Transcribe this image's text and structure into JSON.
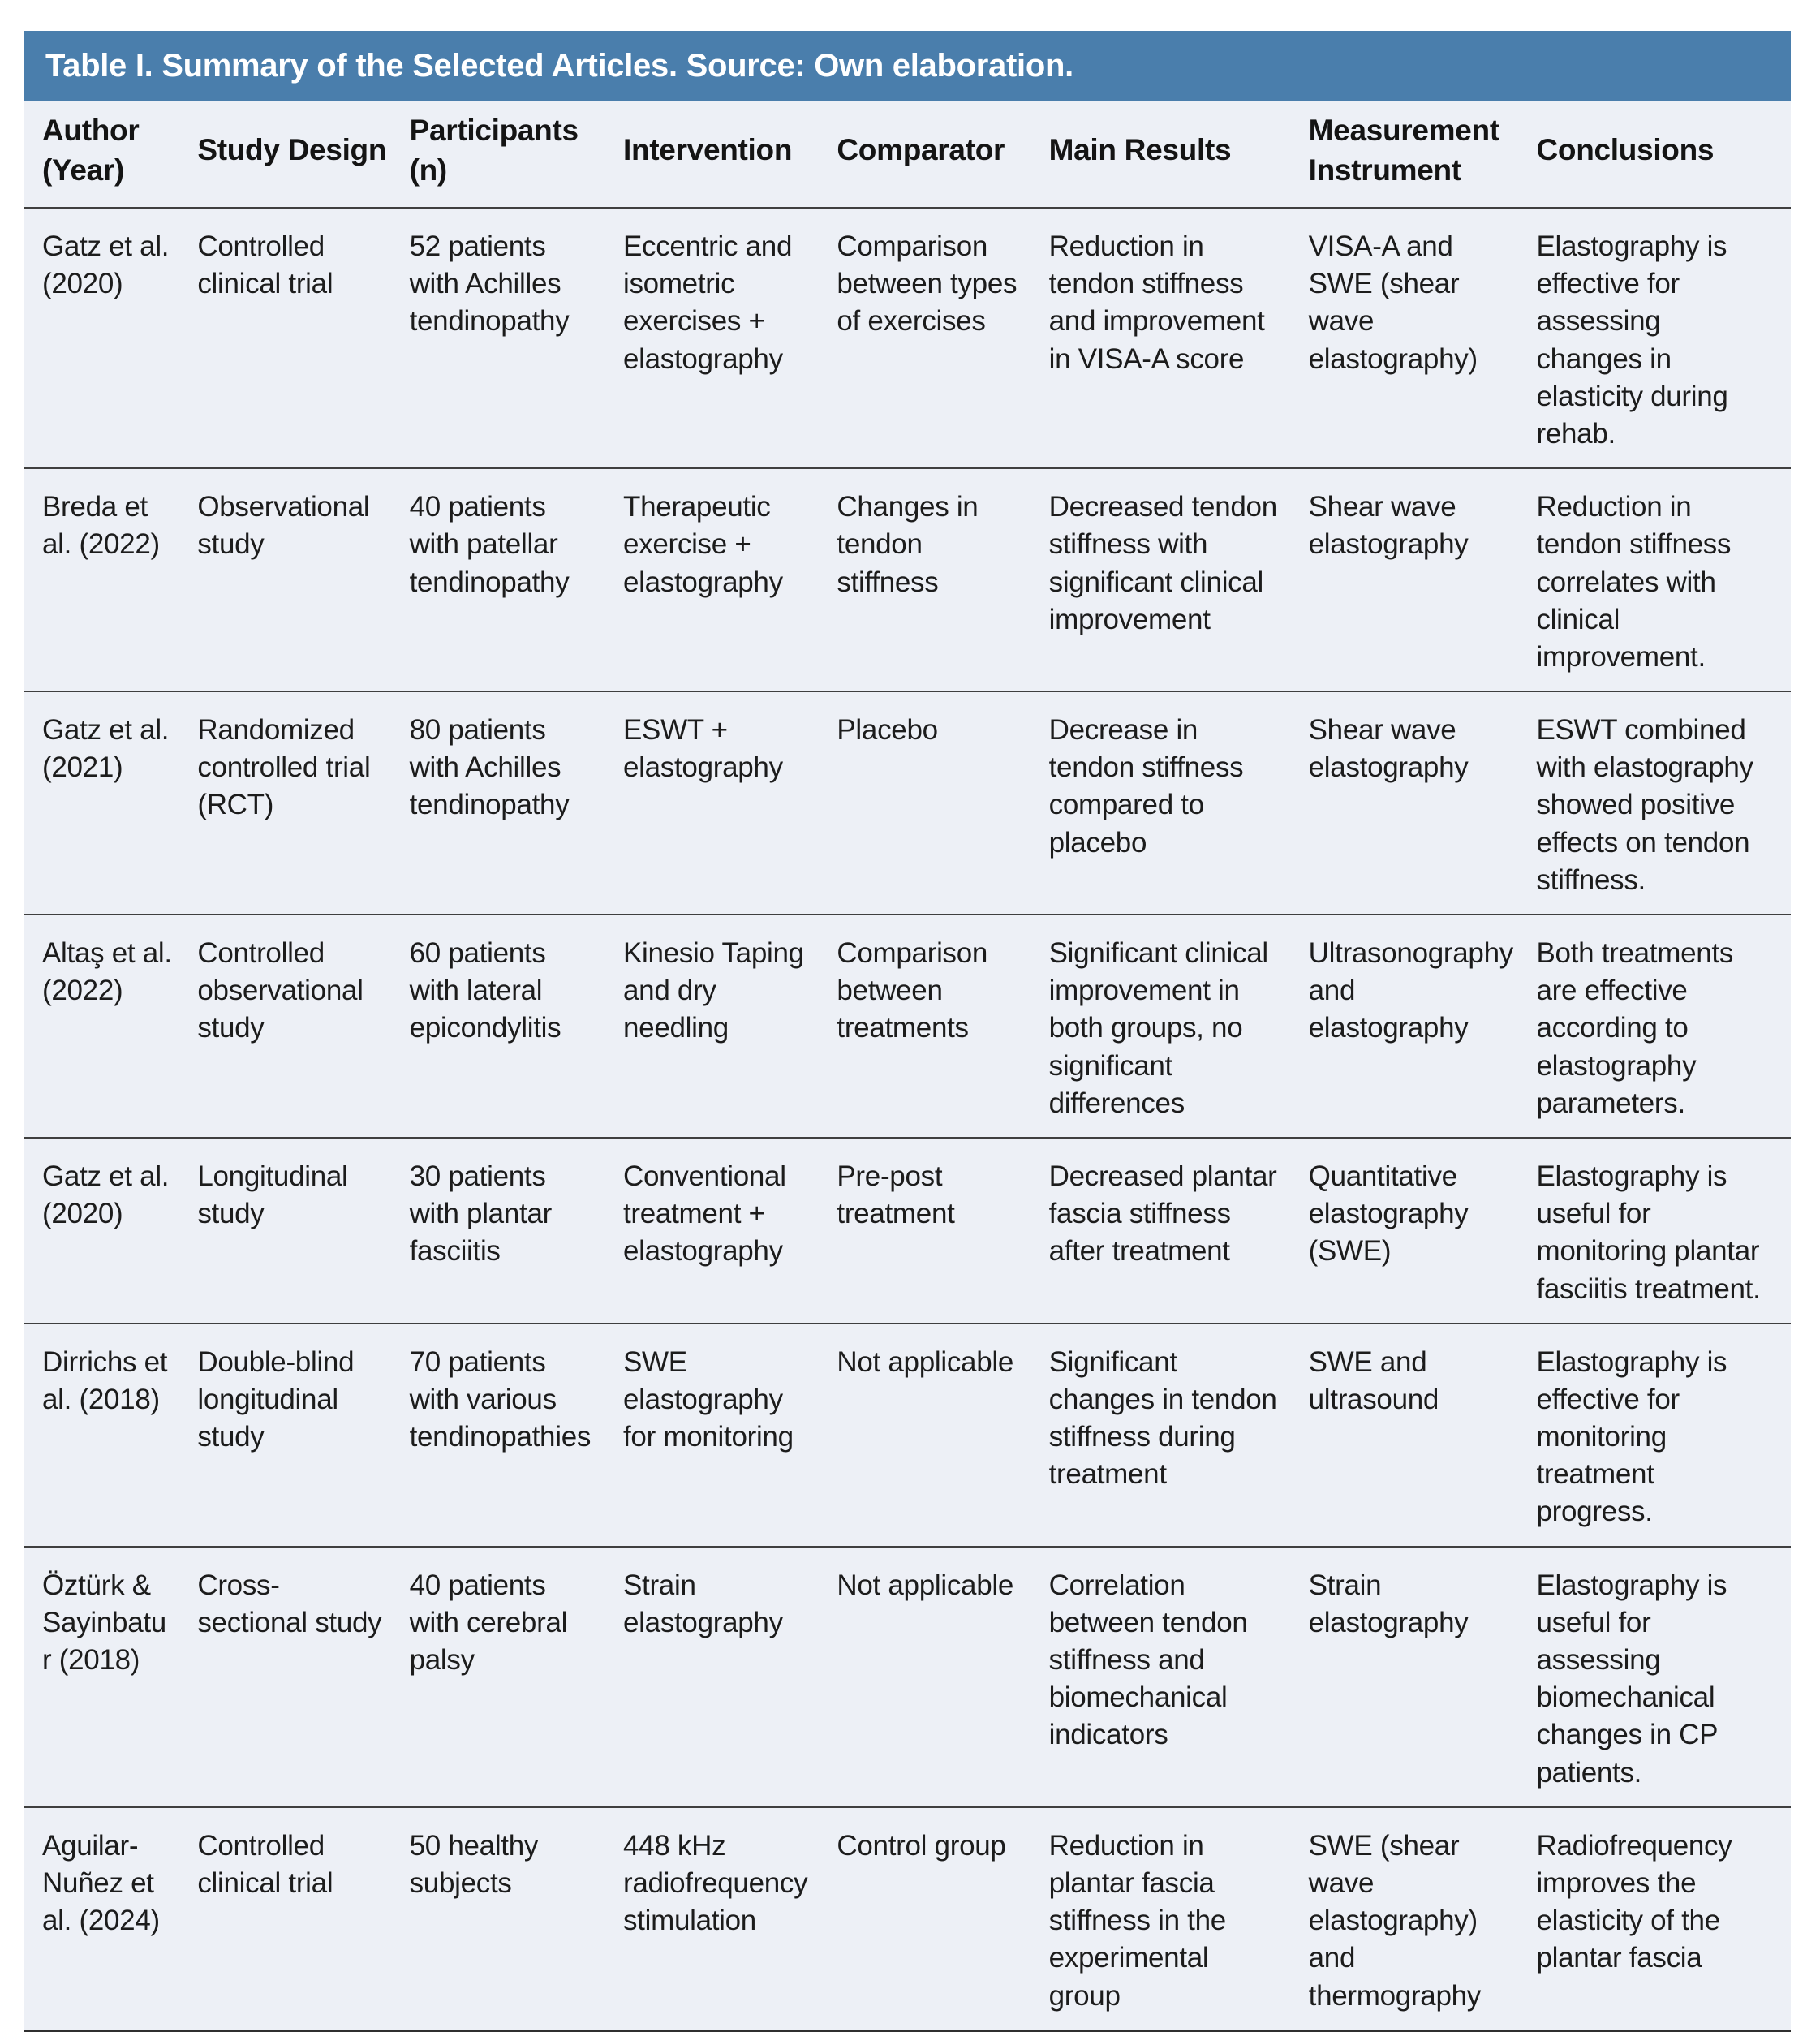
{
  "title": "Table I. Summary of the Selected Articles. Source: Own elaboration.",
  "colors": {
    "title_bar_bg": "#4a7eac",
    "body_bg": "#edf0f6",
    "divider": "#3f3f3f",
    "title_text": "#ffffff",
    "text": "#1c1c1c"
  },
  "table": {
    "columns": [
      "Author (Year)",
      "Study Design",
      "Participants (n)",
      "Intervention",
      "Comparator",
      "Main Results",
      "Measurement Instrument",
      "Conclusions"
    ],
    "rows": [
      [
        "Gatz et al. (2020)",
        "Controlled clinical trial",
        "52 patients with Achilles tendinopathy",
        "Eccentric and isometric exercises + elastography",
        "Comparison between types of exercises",
        "Reduction in tendon stiffness and improvement in VISA-A score",
        "VISA-A and SWE (shear wave elastography)",
        "Elastography is effective for assessing changes in elasticity during rehab."
      ],
      [
        "Breda et al. (2022)",
        "Observational study",
        "40 patients with patellar tendinopathy",
        "Therapeutic exercise + elastography",
        "Changes in tendon stiffness",
        "Decreased tendon stiffness with significant clinical improvement",
        "Shear wave elastography",
        "Reduction in tendon stiffness correlates with clinical improvement."
      ],
      [
        "Gatz et al. (2021)",
        "Randomized controlled trial (RCT)",
        "80 patients with Achilles tendinopathy",
        "ESWT + elastography",
        "Placebo",
        "Decrease in tendon stiffness compared to placebo",
        "Shear wave elastography",
        "ESWT combined with elastography showed positive effects on tendon stiffness."
      ],
      [
        "Altaş et al. (2022)",
        "Controlled observational study",
        "60 patients with lateral epicondylitis",
        "Kinesio Taping and dry needling",
        "Comparison between treatments",
        "Significant clinical improvement in both groups, no significant differences",
        "Ultrasonography and elastography",
        "Both treatments are effective according to elastography parameters."
      ],
      [
        "Gatz et al. (2020)",
        "Longitudinal study",
        "30 patients with plantar fasciitis",
        "Conventional treatment + elastography",
        "Pre-post treatment",
        "Decreased plantar fascia stiffness after treatment",
        "Quantitative elastography (SWE)",
        "Elastography is useful for monitoring plantar fasciitis treatment."
      ],
      [
        "Dirrichs et al. (2018)",
        "Double-blind longitudinal study",
        "70 patients with various tendinopathies",
        "SWE elastography for monitoring",
        "Not applicable",
        "Significant changes in tendon stiffness during treatment",
        "SWE and ultrasound",
        "Elastography is effective for monitoring treatment progress."
      ],
      [
        "Öztürk & Sayinbatur (2018)",
        "Cross-sectional study",
        "40 patients with cerebral palsy",
        "Strain elastography",
        "Not applicable",
        "Correlation between tendon stiffness and biomechanical indicators",
        "Strain elastography",
        "Elastography is useful for assessing biomechanical changes in CP patients."
      ],
      [
        "Aguilar-Nuñez et al. (2024)",
        "Controlled clinical trial",
        "50 healthy subjects",
        "448 kHz radiofrequency stimulation",
        "Control group",
        "Reduction in plantar fascia stiffness in the experimental group",
        "SWE (shear wave elastography) and thermography",
        "Radiofrequency improves the elasticity of the plantar fascia"
      ]
    ]
  }
}
